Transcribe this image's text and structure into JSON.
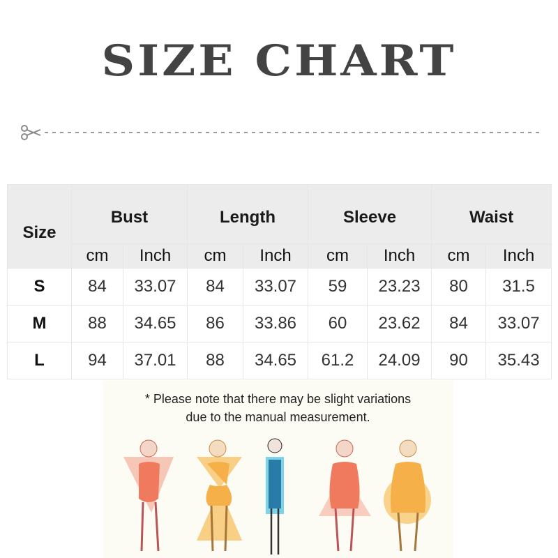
{
  "title": "SIZE CHART",
  "table": {
    "size_header": "Size",
    "groups": [
      "Bust",
      "Length",
      "Sleeve",
      "Waist"
    ],
    "units": [
      "cm",
      "Inch",
      "cm",
      "Inch",
      "cm",
      "Inch",
      "cm",
      "Inch"
    ],
    "rows": [
      {
        "size": "S",
        "values": [
          "84",
          "33.07",
          "84",
          "33.07",
          "59",
          "23.23",
          "80",
          "31.5"
        ]
      },
      {
        "size": "M",
        "values": [
          "88",
          "34.65",
          "86",
          "33.86",
          "60",
          "23.62",
          "84",
          "33.07"
        ]
      },
      {
        "size": "L",
        "values": [
          "94",
          "37.01",
          "88",
          "34.65",
          "61.2",
          "24.09",
          "90",
          "35.43"
        ]
      }
    ]
  },
  "note": {
    "line1": "* Please note that there may be slight variations",
    "line2": "due to the manual measurement."
  },
  "icons": {
    "cut": "scissors-icon"
  },
  "colors": {
    "title": "#434343",
    "header_bg": "#ececec",
    "panel_bg": "#fdfcf4",
    "coral": "#f07a5e",
    "orange": "#f6b04a",
    "teal": "#3ab6d6"
  }
}
